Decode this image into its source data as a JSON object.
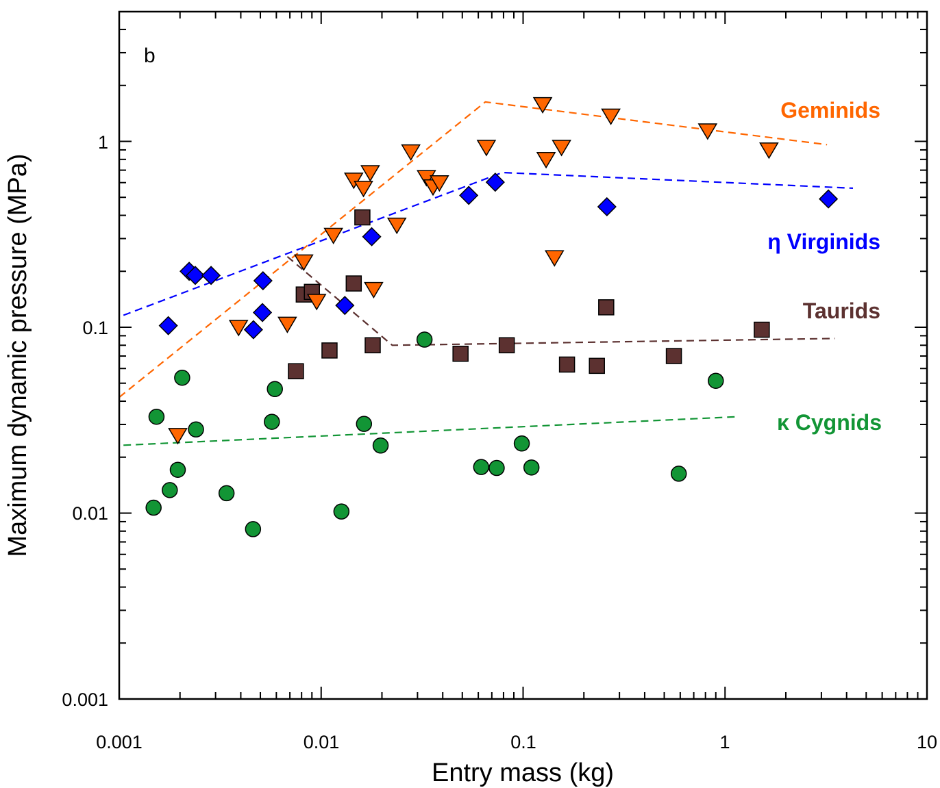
{
  "chart_data": {
    "type": "scatter",
    "panel_label": "b",
    "title": "",
    "xlabel": "Entry mass (kg)",
    "ylabel": "Maximum dynamic pressure (MPa)",
    "xscale": "log",
    "yscale": "log",
    "xlim": [
      0.001,
      10
    ],
    "ylim": [
      0.001,
      5
    ],
    "x_tick_labels": [
      "0.001",
      "0.01",
      "0.1",
      "1",
      "10"
    ],
    "y_tick_labels": [
      "0.001",
      "0.01",
      "0.1",
      "1"
    ],
    "series": [
      {
        "name": "Geminids",
        "marker": "triangle-down",
        "color": "#ff6600",
        "points": [
          [
            0.00195,
            0.0262
          ],
          [
            0.0039,
            0.1
          ],
          [
            0.0068,
            0.104
          ],
          [
            0.0082,
            0.225
          ],
          [
            0.0095,
            0.138
          ],
          [
            0.0115,
            0.313
          ],
          [
            0.0145,
            0.62
          ],
          [
            0.0162,
            0.56
          ],
          [
            0.0175,
            0.68
          ],
          [
            0.0182,
            0.16
          ],
          [
            0.0237,
            0.355
          ],
          [
            0.0278,
            0.88
          ],
          [
            0.0332,
            0.64
          ],
          [
            0.0358,
            0.57
          ],
          [
            0.0385,
            0.6
          ],
          [
            0.0658,
            0.93
          ],
          [
            0.125,
            1.58
          ],
          [
            0.13,
            0.8
          ],
          [
            0.143,
            0.237
          ],
          [
            0.155,
            0.93
          ],
          [
            0.272,
            1.37
          ],
          [
            0.82,
            1.14
          ],
          [
            1.65,
            0.9
          ]
        ],
        "trend": [
          [
            0.001,
            0.042
          ],
          [
            0.065,
            1.63
          ],
          [
            3.2,
            0.96
          ]
        ]
      },
      {
        "name": "η Virginids",
        "marker": "diamond",
        "color": "#0000ff",
        "points": [
          [
            0.00175,
            0.102
          ],
          [
            0.00222,
            0.2
          ],
          [
            0.00238,
            0.19
          ],
          [
            0.00285,
            0.19
          ],
          [
            0.00462,
            0.097
          ],
          [
            0.00512,
            0.12
          ],
          [
            0.00515,
            0.178
          ],
          [
            0.0131,
            0.131
          ],
          [
            0.0178,
            0.307
          ],
          [
            0.0538,
            0.512
          ],
          [
            0.0728,
            0.603
          ],
          [
            0.26,
            0.445
          ],
          [
            3.25,
            0.49
          ]
        ],
        "trend": [
          [
            0.00105,
            0.116
          ],
          [
            0.079,
            0.68
          ],
          [
            4.3,
            0.56
          ]
        ]
      },
      {
        "name": "Taurids",
        "marker": "square",
        "color": "#5c3130",
        "points": [
          [
            0.0075,
            0.058
          ],
          [
            0.0082,
            0.15
          ],
          [
            0.009,
            0.155
          ],
          [
            0.011,
            0.075
          ],
          [
            0.0145,
            0.172
          ],
          [
            0.016,
            0.39
          ],
          [
            0.018,
            0.08
          ],
          [
            0.049,
            0.072
          ],
          [
            0.083,
            0.08
          ],
          [
            0.165,
            0.063
          ],
          [
            0.232,
            0.062
          ],
          [
            0.258,
            0.128
          ],
          [
            0.558,
            0.07
          ],
          [
            1.52,
            0.097
          ]
        ],
        "trend": [
          [
            0.0068,
            0.24
          ],
          [
            0.0225,
            0.08
          ],
          [
            3.5,
            0.087
          ]
        ]
      },
      {
        "name": "κ Cygnids",
        "marker": "circle",
        "color": "#129535",
        "points": [
          [
            0.00148,
            0.0107
          ],
          [
            0.00153,
            0.033
          ],
          [
            0.00178,
            0.0133
          ],
          [
            0.00195,
            0.0171
          ],
          [
            0.00205,
            0.0535
          ],
          [
            0.0024,
            0.0282
          ],
          [
            0.0034,
            0.0128
          ],
          [
            0.0046,
            0.0082
          ],
          [
            0.0057,
            0.031
          ],
          [
            0.0059,
            0.0465
          ],
          [
            0.0126,
            0.0102
          ],
          [
            0.0163,
            0.0302
          ],
          [
            0.0197,
            0.0231
          ],
          [
            0.0325,
            0.0858
          ],
          [
            0.062,
            0.0177
          ],
          [
            0.074,
            0.0175
          ],
          [
            0.0985,
            0.0237
          ],
          [
            0.11,
            0.0176
          ],
          [
            0.59,
            0.0163
          ],
          [
            0.9,
            0.0515
          ]
        ],
        "trend": [
          [
            0.00105,
            0.0232
          ],
          [
            1.15,
            0.033
          ]
        ]
      }
    ],
    "legend": "inline-right"
  }
}
